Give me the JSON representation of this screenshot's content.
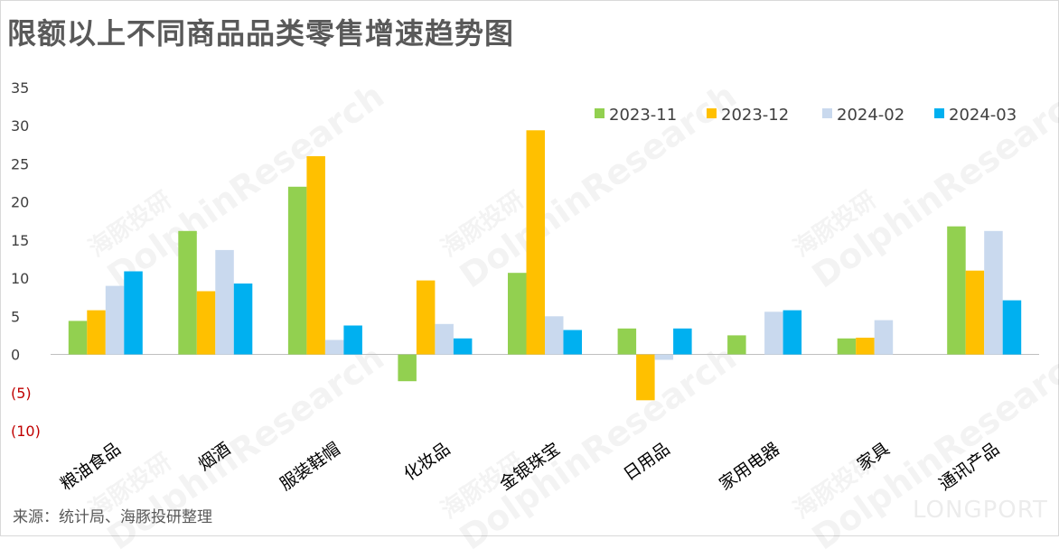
{
  "title": "限额以上不同商品品类零售增速趋势图",
  "source": "来源：统计局、海豚投研整理",
  "watermark": {
    "line1": "海豚投研",
    "line2": "DolphinResearch",
    "brand": "LONGPORT"
  },
  "colors": {
    "series": [
      "#92d050",
      "#ffc000",
      "#c9d9ee",
      "#00b0f0"
    ],
    "axis_text": "#404040",
    "negative_tick": "#c00000",
    "zero_line": "#bfbfbf"
  },
  "chart_data": {
    "type": "bar",
    "title": "限额以上不同商品品类零售增速趋势图",
    "categories": [
      "粮油食品",
      "烟酒",
      "服装鞋帽",
      "化妆品",
      "金银珠宝",
      "日用品",
      "家用电器",
      "家具",
      "通讯产品"
    ],
    "series": [
      {
        "name": "2023-11",
        "values": [
          4.4,
          16.2,
          22.0,
          -3.5,
          10.7,
          3.4,
          2.5,
          2.1,
          16.8
        ]
      },
      {
        "name": "2023-12",
        "values": [
          5.8,
          8.3,
          26.0,
          9.7,
          29.4,
          -6.0,
          0,
          2.2,
          11.0
        ]
      },
      {
        "name": "2024-02",
        "values": [
          9.0,
          13.7,
          1.9,
          4.0,
          5.0,
          -0.7,
          5.6,
          4.5,
          16.2
        ]
      },
      {
        "name": "2024-03",
        "values": [
          10.9,
          9.3,
          3.8,
          2.1,
          3.2,
          3.4,
          5.8,
          0,
          7.1
        ]
      }
    ],
    "yticks": [
      35,
      30,
      25,
      20,
      15,
      10,
      5,
      0,
      -5,
      -10
    ],
    "ytick_labels": [
      "35",
      "30",
      "25",
      "20",
      "15",
      "10",
      "5",
      "0",
      "(5)",
      "(10)"
    ],
    "ylim": [
      -10,
      35
    ],
    "legend_position": "top-right",
    "grid": false
  }
}
